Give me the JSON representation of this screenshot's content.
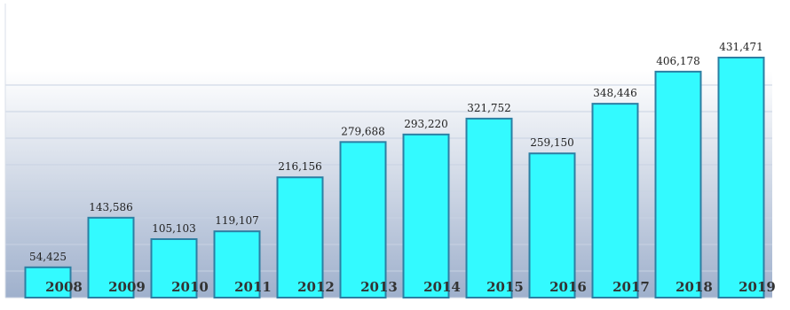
{
  "chart_data": {
    "type": "bar",
    "title": "",
    "xlabel": "",
    "ylabel": "",
    "categories": [
      "2008",
      "2009",
      "2010",
      "2011",
      "2012",
      "2013",
      "2014",
      "2015",
      "2016",
      "2017",
      "2018",
      "2019"
    ],
    "values": [
      54425,
      143586,
      105103,
      119107,
      216156,
      279688,
      293220,
      321752,
      259150,
      348446,
      406178,
      431471
    ],
    "value_labels": [
      "54,425",
      "143,586",
      "105,103",
      "119,107",
      "216,156",
      "279,688",
      "293,220",
      "321,752",
      "259,150",
      "348,446",
      "406,178",
      "431,471"
    ],
    "ylim": [
      0,
      450000
    ],
    "grid": true,
    "legend": "none",
    "colors": {
      "bar_fill": "#33FAFF",
      "bar_stroke": "#2C7FA3",
      "background_top": "#FFFFFF",
      "background_bottom": "#9FB0CC",
      "gridline": "#C8D2E2",
      "axis_line": "#D9DFE8"
    }
  }
}
